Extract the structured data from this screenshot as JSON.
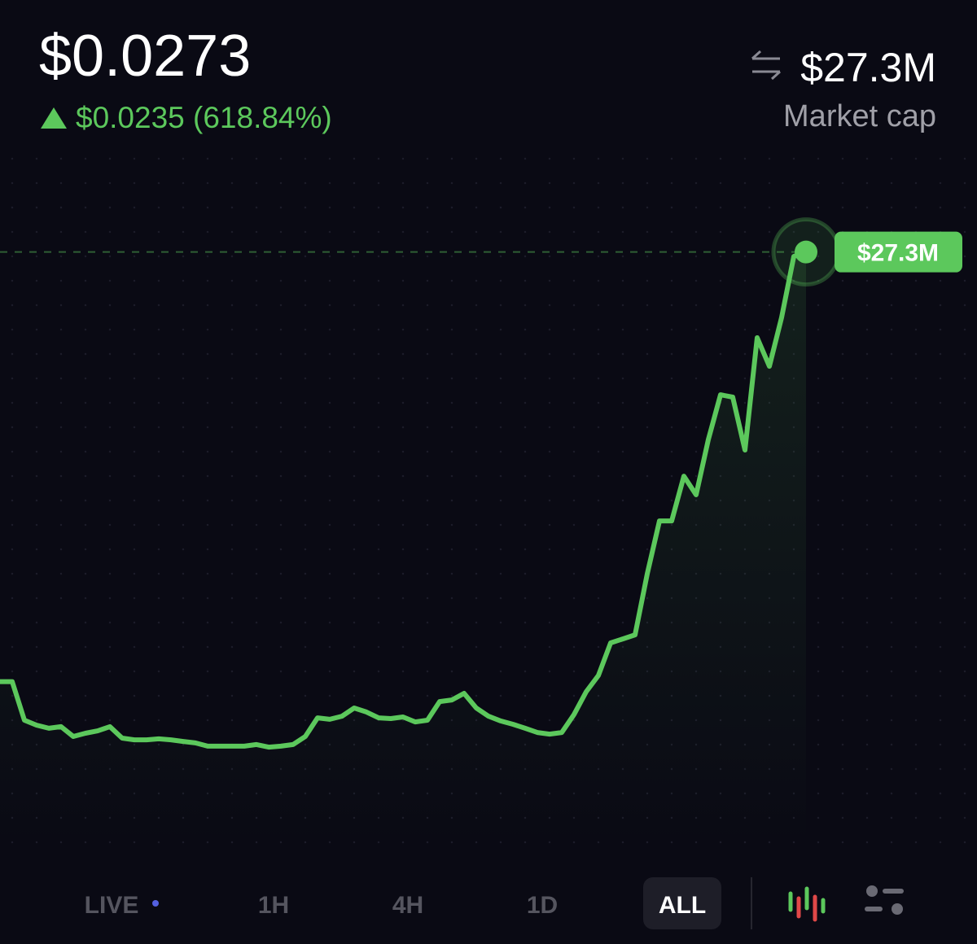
{
  "header": {
    "price": "$0.0273",
    "change": "$0.0235 (618.84%)",
    "market_cap": "$27.3M",
    "market_cap_label": "Market cap"
  },
  "tabs": [
    "LIVE",
    "1H",
    "4H",
    "1D",
    "ALL"
  ],
  "chart_data": {
    "type": "line",
    "color": "#5cc85c",
    "ylim": [
      0,
      30
    ],
    "values": [
      3.8,
      3.8,
      1.69,
      1.42,
      1.25,
      1.34,
      0.8,
      0.98,
      1.11,
      1.34,
      0.71,
      0.62,
      0.62,
      0.67,
      0.62,
      0.53,
      0.45,
      0.27,
      0.27,
      0.27,
      0.27,
      0.36,
      0.22,
      0.27,
      0.36,
      0.8,
      1.82,
      1.74,
      1.91,
      2.36,
      2.14,
      1.82,
      1.78,
      1.87,
      1.6,
      1.69,
      2.71,
      2.8,
      3.16,
      2.36,
      1.91,
      1.65,
      1.47,
      1.25,
      1.02,
      0.93,
      1.02,
      2.0,
      3.25,
      4.14,
      5.92,
      6.14,
      6.36,
      9.7,
      12.59,
      12.59,
      15.04,
      14.02,
      17.04,
      19.49,
      19.36,
      16.47,
      22.61,
      21.05,
      23.72,
      27.06,
      27.3
    ],
    "value_labels": [
      null,
      null,
      null,
      null,
      null,
      null,
      null,
      null,
      null,
      null,
      null,
      null,
      null,
      null,
      null,
      null,
      null,
      null,
      null,
      null,
      null,
      null,
      null,
      null,
      null,
      null,
      null,
      null,
      null,
      null,
      null,
      null,
      null,
      null,
      null,
      null,
      null,
      null,
      null,
      null,
      null,
      null,
      null,
      null,
      null,
      null,
      null,
      null,
      null,
      null,
      null,
      null,
      null,
      null,
      null,
      null,
      null,
      null,
      null,
      null,
      null,
      null,
      null,
      null,
      null,
      null,
      "$27.3M"
    ]
  }
}
